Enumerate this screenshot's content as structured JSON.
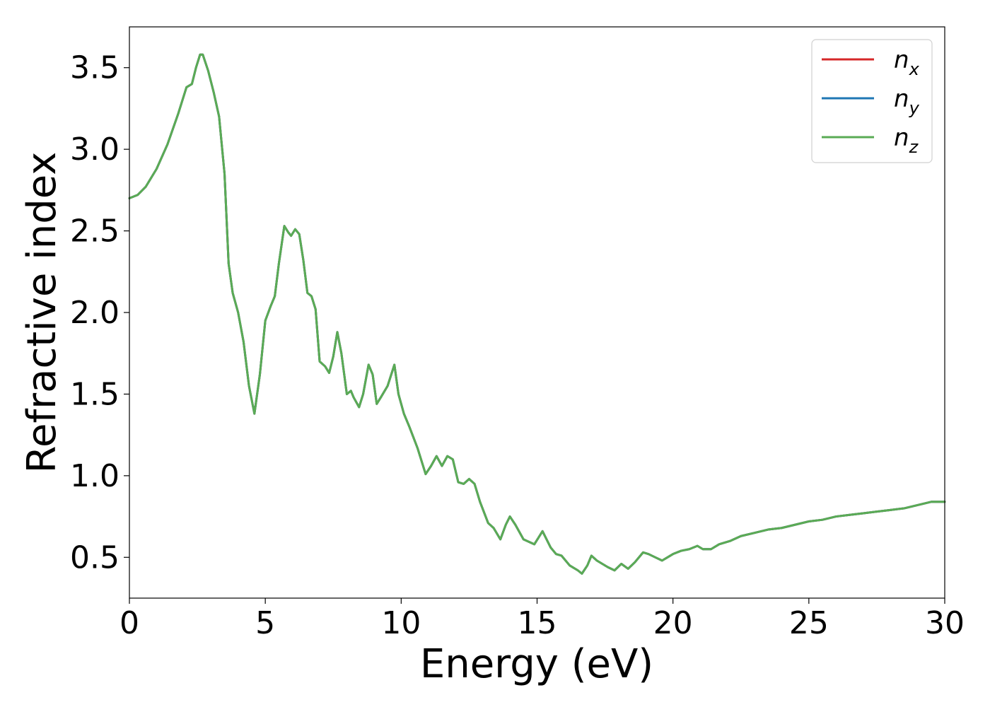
{
  "chart_data": {
    "type": "line",
    "xlabel": "Energy (eV)",
    "ylabel": "Refractive index",
    "xlim": [
      0,
      30
    ],
    "ylim": [
      0.25,
      3.75
    ],
    "xticks": [
      0,
      5,
      10,
      15,
      20,
      25,
      30
    ],
    "yticks": [
      0.5,
      1.0,
      1.5,
      2.0,
      2.5,
      3.0,
      3.5
    ],
    "xtick_labels": [
      "0",
      "5",
      "10",
      "15",
      "20",
      "25",
      "30"
    ],
    "ytick_labels": [
      "0.5",
      "1.0",
      "1.5",
      "2.0",
      "2.5",
      "3.0",
      "3.5"
    ],
    "grid": false,
    "legend": "top-right",
    "x": [
      0,
      0.3,
      0.6,
      1.0,
      1.4,
      1.8,
      2.1,
      2.3,
      2.45,
      2.6,
      2.7,
      2.9,
      3.1,
      3.3,
      3.5,
      3.65,
      3.8,
      4.0,
      4.2,
      4.4,
      4.6,
      4.8,
      5.0,
      5.2,
      5.35,
      5.5,
      5.7,
      5.85,
      5.95,
      6.1,
      6.25,
      6.4,
      6.55,
      6.7,
      6.85,
      7.0,
      7.2,
      7.35,
      7.5,
      7.65,
      7.8,
      8.0,
      8.15,
      8.25,
      8.45,
      8.6,
      8.8,
      8.95,
      9.1,
      9.25,
      9.5,
      9.75,
      9.9,
      10.1,
      10.3,
      10.6,
      10.9,
      11.1,
      11.3,
      11.5,
      11.7,
      11.9,
      12.1,
      12.3,
      12.5,
      12.7,
      12.9,
      13.2,
      13.4,
      13.65,
      13.85,
      14.0,
      14.2,
      14.5,
      14.9,
      15.2,
      15.5,
      15.7,
      15.9,
      16.2,
      16.5,
      16.65,
      16.85,
      17.0,
      17.2,
      17.4,
      17.6,
      17.85,
      18.1,
      18.35,
      18.6,
      18.9,
      19.1,
      19.35,
      19.6,
      19.8,
      20.0,
      20.3,
      20.6,
      20.9,
      21.1,
      21.4,
      21.7,
      22.1,
      22.5,
      23.0,
      23.5,
      24.0,
      24.5,
      25.0,
      25.5,
      26.0,
      26.5,
      27.0,
      27.5,
      28.0,
      28.5,
      29.0,
      29.5,
      30.0
    ],
    "series": [
      {
        "name": "n_x",
        "label_base": "n",
        "label_sub": "x",
        "color": "#d62728",
        "values": [
          2.7,
          2.72,
          2.77,
          2.88,
          3.03,
          3.22,
          3.38,
          3.4,
          3.5,
          3.58,
          3.58,
          3.48,
          3.35,
          3.2,
          2.85,
          2.3,
          2.12,
          2.0,
          1.82,
          1.55,
          1.38,
          1.62,
          1.95,
          2.04,
          2.1,
          2.3,
          2.53,
          2.49,
          2.47,
          2.51,
          2.48,
          2.32,
          2.12,
          2.1,
          2.02,
          1.7,
          1.67,
          1.63,
          1.73,
          1.88,
          1.75,
          1.5,
          1.52,
          1.48,
          1.42,
          1.5,
          1.68,
          1.62,
          1.44,
          1.48,
          1.55,
          1.68,
          1.5,
          1.38,
          1.3,
          1.17,
          1.01,
          1.06,
          1.12,
          1.06,
          1.12,
          1.1,
          0.96,
          0.95,
          0.98,
          0.95,
          0.84,
          0.71,
          0.68,
          0.61,
          0.7,
          0.75,
          0.7,
          0.61,
          0.58,
          0.66,
          0.56,
          0.52,
          0.51,
          0.45,
          0.42,
          0.4,
          0.45,
          0.51,
          0.48,
          0.46,
          0.44,
          0.42,
          0.46,
          0.43,
          0.47,
          0.53,
          0.52,
          0.5,
          0.48,
          0.5,
          0.52,
          0.54,
          0.55,
          0.57,
          0.55,
          0.55,
          0.58,
          0.6,
          0.63,
          0.65,
          0.67,
          0.68,
          0.7,
          0.72,
          0.73,
          0.75,
          0.76,
          0.77,
          0.78,
          0.79,
          0.8,
          0.82,
          0.84,
          0.84
        ]
      },
      {
        "name": "n_y",
        "label_base": "n",
        "label_sub": "y",
        "color": "#1f77b4",
        "values": [
          2.7,
          2.72,
          2.77,
          2.88,
          3.03,
          3.22,
          3.38,
          3.4,
          3.5,
          3.58,
          3.58,
          3.48,
          3.35,
          3.2,
          2.85,
          2.3,
          2.12,
          2.0,
          1.82,
          1.55,
          1.38,
          1.62,
          1.95,
          2.04,
          2.1,
          2.3,
          2.53,
          2.49,
          2.47,
          2.51,
          2.48,
          2.32,
          2.12,
          2.1,
          2.02,
          1.7,
          1.67,
          1.63,
          1.73,
          1.88,
          1.75,
          1.5,
          1.52,
          1.48,
          1.42,
          1.5,
          1.68,
          1.62,
          1.44,
          1.48,
          1.55,
          1.68,
          1.5,
          1.38,
          1.3,
          1.17,
          1.01,
          1.06,
          1.12,
          1.06,
          1.12,
          1.1,
          0.96,
          0.95,
          0.98,
          0.95,
          0.84,
          0.71,
          0.68,
          0.61,
          0.7,
          0.75,
          0.7,
          0.61,
          0.58,
          0.66,
          0.56,
          0.52,
          0.51,
          0.45,
          0.42,
          0.4,
          0.45,
          0.51,
          0.48,
          0.46,
          0.44,
          0.42,
          0.46,
          0.43,
          0.47,
          0.53,
          0.52,
          0.5,
          0.48,
          0.5,
          0.52,
          0.54,
          0.55,
          0.57,
          0.55,
          0.55,
          0.58,
          0.6,
          0.63,
          0.65,
          0.67,
          0.68,
          0.7,
          0.72,
          0.73,
          0.75,
          0.76,
          0.77,
          0.78,
          0.79,
          0.8,
          0.82,
          0.84,
          0.84
        ]
      },
      {
        "name": "n_z",
        "label_base": "n",
        "label_sub": "z",
        "color": "#5aab55",
        "values": [
          2.7,
          2.72,
          2.77,
          2.88,
          3.03,
          3.22,
          3.38,
          3.4,
          3.5,
          3.58,
          3.58,
          3.48,
          3.35,
          3.2,
          2.85,
          2.3,
          2.12,
          2.0,
          1.82,
          1.55,
          1.38,
          1.62,
          1.95,
          2.04,
          2.1,
          2.3,
          2.53,
          2.49,
          2.47,
          2.51,
          2.48,
          2.32,
          2.12,
          2.1,
          2.02,
          1.7,
          1.67,
          1.63,
          1.73,
          1.88,
          1.75,
          1.5,
          1.52,
          1.48,
          1.42,
          1.5,
          1.68,
          1.62,
          1.44,
          1.48,
          1.55,
          1.68,
          1.5,
          1.38,
          1.3,
          1.17,
          1.01,
          1.06,
          1.12,
          1.06,
          1.12,
          1.1,
          0.96,
          0.95,
          0.98,
          0.95,
          0.84,
          0.71,
          0.68,
          0.61,
          0.7,
          0.75,
          0.7,
          0.61,
          0.58,
          0.66,
          0.56,
          0.52,
          0.51,
          0.45,
          0.42,
          0.4,
          0.45,
          0.51,
          0.48,
          0.46,
          0.44,
          0.42,
          0.46,
          0.43,
          0.47,
          0.53,
          0.52,
          0.5,
          0.48,
          0.5,
          0.52,
          0.54,
          0.55,
          0.57,
          0.55,
          0.55,
          0.58,
          0.6,
          0.63,
          0.65,
          0.67,
          0.68,
          0.7,
          0.72,
          0.73,
          0.75,
          0.76,
          0.77,
          0.78,
          0.79,
          0.8,
          0.82,
          0.84,
          0.84
        ]
      }
    ]
  }
}
